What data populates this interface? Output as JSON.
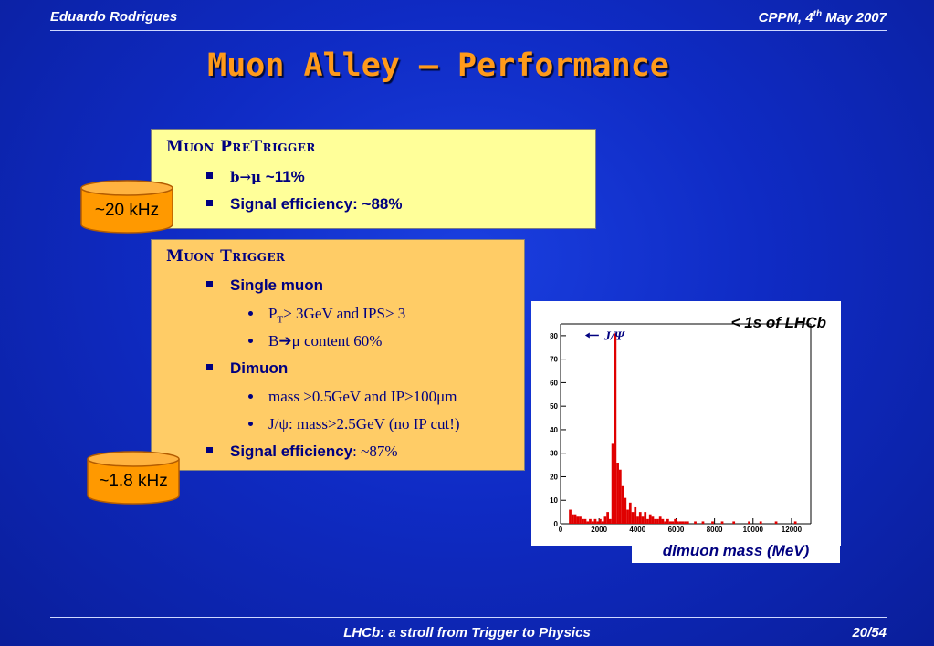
{
  "header": {
    "author": "Eduardo Rodrigues",
    "venue": "CPPM, 4",
    "venue_sup": "th",
    "venue_rest": " May 2007"
  },
  "title": "Muon Alley – Performance",
  "pretrigger": {
    "heading": "Muon PreTrigger",
    "bullet1_a": "b→μ",
    "bullet1_b": " ~11%",
    "bullet2_a": "Signal efficiency:",
    "bullet2_b": " ~88%"
  },
  "trigger": {
    "heading": "Muon Trigger",
    "single_muon": "Single muon",
    "single_item1_a": "P",
    "single_item1_sub": "T",
    "single_item1_b": "> 3GeV and IPS> 3",
    "single_item2": "B➔μ content 60%",
    "dimuon": "Dimuon",
    "dimuon_item1": "mass >0.5GeV and IP>100μm",
    "dimuon_item2": " J/ψ: mass>2.5GeV (no IP cut!)",
    "eff_a": "Signal efficiency",
    "eff_b": ":   ~87%"
  },
  "rate1": "~20 kHz",
  "rate2": "~1.8 kHz",
  "plot": {
    "title": "< 1s of LHCb",
    "jpsi_label": "J/Ψ",
    "caption": "dimuon mass (MeV)"
  },
  "footer": {
    "center": "LHCb: a stroll from Trigger to Physics",
    "page": "20/54"
  },
  "chart_data": {
    "type": "bar",
    "title": "< 1s of LHCb",
    "xlabel": "dimuon mass (MeV)",
    "ylabel": "",
    "xlim": [
      0,
      13000
    ],
    "ylim": [
      0,
      85
    ],
    "xticks": [
      0,
      2000,
      4000,
      6000,
      8000,
      10000,
      12000
    ],
    "yticks": [
      0,
      10,
      20,
      30,
      40,
      50,
      60,
      70,
      80
    ],
    "bar_color": "#e00000",
    "annotation": "J/Ψ",
    "bin_width": 130,
    "x": [
      500,
      630,
      760,
      890,
      1020,
      1150,
      1280,
      1410,
      1540,
      1670,
      1800,
      1930,
      2060,
      2190,
      2320,
      2450,
      2580,
      2710,
      2840,
      2970,
      3100,
      3230,
      3360,
      3490,
      3620,
      3750,
      3880,
      4010,
      4140,
      4270,
      4400,
      4530,
      4660,
      4790,
      4920,
      5050,
      5180,
      5310,
      5440,
      5570,
      5700,
      5830,
      5960,
      6090,
      6220,
      6350,
      6480,
      6610,
      7000,
      7400,
      7900,
      8400,
      9000,
      9800,
      10400,
      11200,
      12200
    ],
    "values": [
      6,
      4,
      4,
      3,
      3,
      2,
      2,
      1,
      2,
      1,
      2,
      1,
      2,
      1,
      3,
      5,
      2,
      34,
      81,
      26,
      23,
      16,
      11,
      6,
      9,
      5,
      7,
      3,
      5,
      3,
      5,
      2,
      4,
      3,
      2,
      2,
      3,
      2,
      1,
      2,
      1,
      1,
      2,
      1,
      1,
      1,
      1,
      1,
      1,
      1,
      1,
      1,
      1,
      1,
      1,
      1,
      1
    ]
  }
}
